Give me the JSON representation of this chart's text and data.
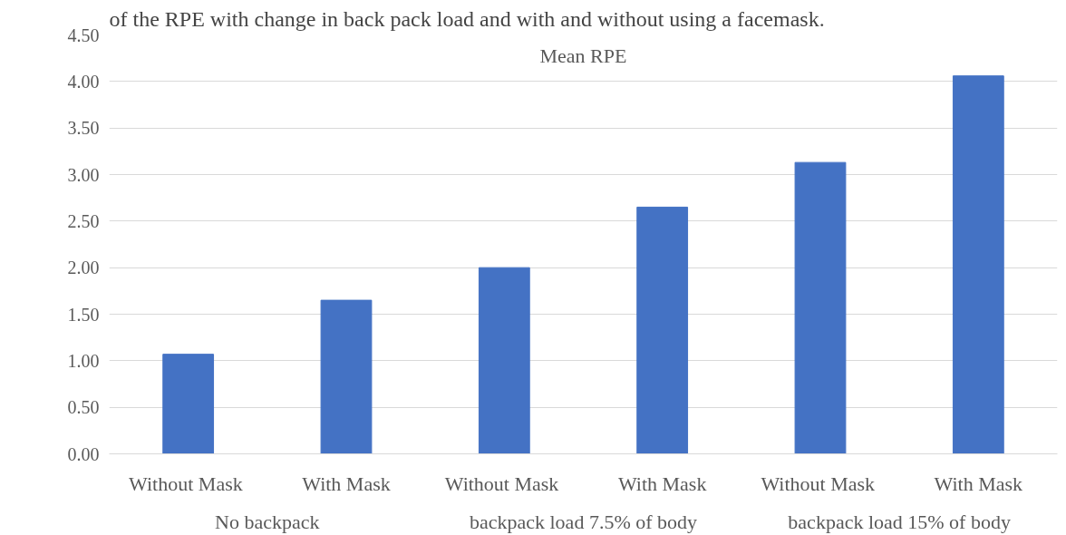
{
  "chart_data": {
    "type": "bar",
    "title": "Mean RPE",
    "categories": [
      "Without  Mask",
      "With Mask",
      "Without  Mask",
      "With Mask",
      "Without  Mask",
      "With Mask"
    ],
    "values": [
      1.07,
      1.65,
      2.0,
      2.65,
      3.13,
      4.06
    ],
    "color": "#4472c4",
    "ylim": [
      0,
      4.5
    ],
    "yticks": [
      {
        "value": 0,
        "label": "0.00"
      },
      {
        "value": 0.5,
        "label": "0.50"
      },
      {
        "value": 1,
        "label": "1.00"
      },
      {
        "value": 1.5,
        "label": "1.50"
      },
      {
        "value": 2,
        "label": "2.00"
      },
      {
        "value": 2.5,
        "label": "2.50"
      },
      {
        "value": 3,
        "label": "3.00"
      },
      {
        "value": 3.5,
        "label": "3.50"
      },
      {
        "value": 4,
        "label": "4.00"
      },
      {
        "value": 4.5,
        "label": "4.50"
      }
    ],
    "grid": "y",
    "annotations": [
      "of the RPE with change in back pack load and with and without using a facemask.",
      "No backpack",
      "backpack load 7.5% of body",
      "backpack load 15% of body"
    ]
  }
}
